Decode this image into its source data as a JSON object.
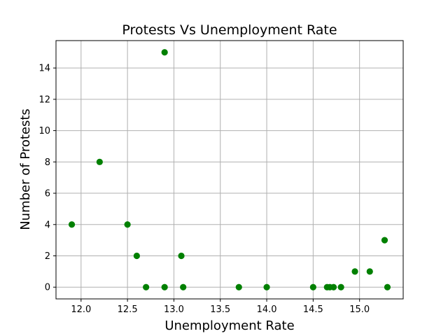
{
  "colors": {
    "marker": "#008000",
    "grid": "#b0b0b0",
    "axes": "#000000",
    "background": "#ffffff"
  },
  "chart_data": {
    "type": "scatter",
    "title": "Protests Vs Unemployment Rate",
    "xlabel": "Unemployment Rate",
    "ylabel": "Number of Protests",
    "xlim": [
      11.73,
      15.47
    ],
    "ylim": [
      -0.75,
      15.75
    ],
    "xticks": [
      12.0,
      12.5,
      13.0,
      13.5,
      14.0,
      14.5,
      15.0
    ],
    "xtick_labels": [
      "12.0",
      "12.5",
      "13.0",
      "13.5",
      "14.0",
      "14.5",
      "15.0"
    ],
    "yticks": [
      0,
      2,
      4,
      6,
      8,
      10,
      12,
      14
    ],
    "ytick_labels": [
      "0",
      "2",
      "4",
      "6",
      "8",
      "10",
      "12",
      "14"
    ],
    "grid": true,
    "series": [
      {
        "points": [
          {
            "x": 11.9,
            "y": 4
          },
          {
            "x": 12.2,
            "y": 8
          },
          {
            "x": 12.5,
            "y": 4
          },
          {
            "x": 12.6,
            "y": 2
          },
          {
            "x": 12.7,
            "y": 0
          },
          {
            "x": 12.9,
            "y": 15
          },
          {
            "x": 12.9,
            "y": 0
          },
          {
            "x": 13.08,
            "y": 2
          },
          {
            "x": 13.1,
            "y": 0
          },
          {
            "x": 13.7,
            "y": 0
          },
          {
            "x": 14.0,
            "y": 0
          },
          {
            "x": 14.5,
            "y": 0
          },
          {
            "x": 14.65,
            "y": 0
          },
          {
            "x": 14.68,
            "y": 0
          },
          {
            "x": 14.72,
            "y": 0
          },
          {
            "x": 14.8,
            "y": 0
          },
          {
            "x": 14.95,
            "y": 1
          },
          {
            "x": 15.11,
            "y": 1
          },
          {
            "x": 15.27,
            "y": 3
          },
          {
            "x": 15.3,
            "y": 0
          }
        ]
      }
    ]
  }
}
